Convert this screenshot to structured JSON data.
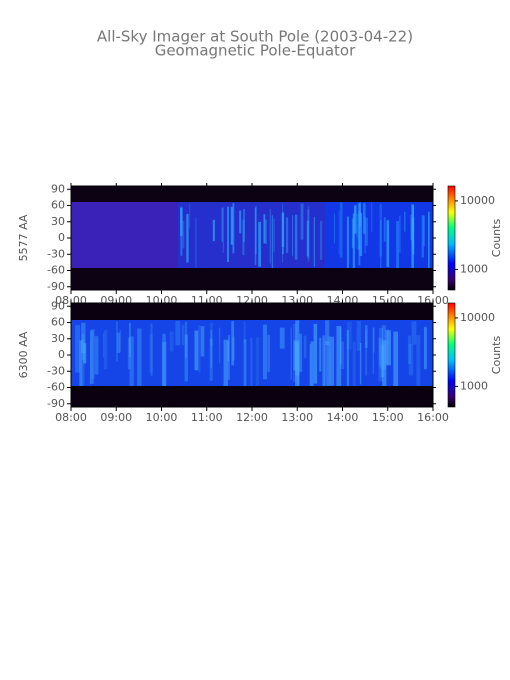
{
  "title": "All-Sky Imager at South Pole (2003-04-22)",
  "subtitle": "Geomagnetic Pole-Equator",
  "chart_data": [
    {
      "type": "heatmap",
      "ylabel": "5577 AA",
      "xlim": [
        8,
        16
      ],
      "xticks": [
        {
          "value": 8,
          "label": "08:00"
        },
        {
          "value": 9,
          "label": "09:00"
        },
        {
          "value": 10,
          "label": "10:00"
        },
        {
          "value": 11,
          "label": "11:00"
        },
        {
          "value": 12,
          "label": "12:00"
        },
        {
          "value": 13,
          "label": "13:00"
        },
        {
          "value": 14,
          "label": "14:00"
        },
        {
          "value": 15,
          "label": "15:00"
        },
        {
          "value": 16,
          "label": "16:00"
        }
      ],
      "ylim": [
        -96,
        96
      ],
      "yticks": [
        90,
        60,
        30,
        0,
        -30,
        -60,
        -90
      ],
      "colorbar": {
        "label": "Counts",
        "scale": "log",
        "lim": [
          500,
          16500
        ],
        "ticks": [
          10000,
          1000
        ]
      }
    },
    {
      "type": "heatmap",
      "ylabel": "6300 AA",
      "xlim": [
        8,
        16
      ],
      "xticks": [
        {
          "value": 8,
          "label": "08:00"
        },
        {
          "value": 9,
          "label": "09:00"
        },
        {
          "value": 10,
          "label": "10:00"
        },
        {
          "value": 11,
          "label": "11:00"
        },
        {
          "value": 12,
          "label": "12:00"
        },
        {
          "value": 13,
          "label": "13:00"
        },
        {
          "value": 14,
          "label": "14:00"
        },
        {
          "value": 15,
          "label": "15:00"
        },
        {
          "value": 16,
          "label": "16:00"
        }
      ],
      "ylim": [
        -96,
        96
      ],
      "yticks": [
        90,
        60,
        30,
        0,
        -30,
        -60,
        -90
      ],
      "colorbar": {
        "label": "Counts",
        "scale": "log",
        "lim": [
          500,
          16500
        ],
        "ticks": [
          10000,
          1000
        ]
      }
    }
  ]
}
